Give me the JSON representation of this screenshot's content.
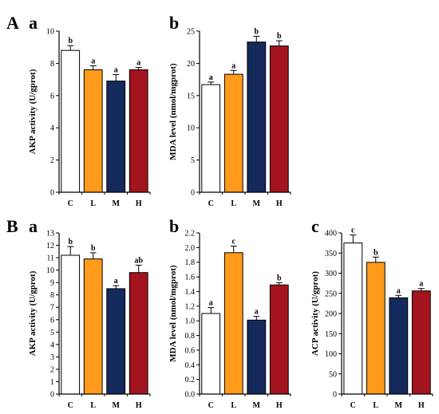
{
  "figure": {
    "group_labels": [
      "A",
      "B"
    ]
  },
  "chart_data": [
    {
      "type": "bar",
      "group": "A",
      "panel": "a",
      "ylabel": "AKP activity (U/gprot)",
      "categories": [
        "C",
        "L",
        "M",
        "H"
      ],
      "values": [
        8.8,
        7.6,
        6.9,
        7.6
      ],
      "errors": [
        0.3,
        0.25,
        0.4,
        0.15
      ],
      "sig": [
        "b",
        "a",
        "a",
        "a"
      ],
      "colors": [
        "#ffffff",
        "#ff9a1a",
        "#14295c",
        "#a3141e"
      ],
      "ylim": [
        0,
        10
      ],
      "yticks": [
        0,
        2,
        4,
        6,
        8,
        10
      ]
    },
    {
      "type": "bar",
      "group": "A",
      "panel": "b",
      "ylabel": "MDA level (nmol/mgprot)",
      "categories": [
        "C",
        "L",
        "M",
        "H"
      ],
      "values": [
        16.7,
        18.3,
        23.3,
        22.7
      ],
      "errors": [
        0.4,
        0.6,
        0.9,
        0.8
      ],
      "sig": [
        "a",
        "a",
        "b",
        "b"
      ],
      "colors": [
        "#ffffff",
        "#ff9a1a",
        "#14295c",
        "#a3141e"
      ],
      "ylim": [
        0,
        25
      ],
      "yticks": [
        0,
        5,
        10,
        15,
        20,
        25
      ]
    },
    {
      "type": "bar",
      "group": "B",
      "panel": "a",
      "ylabel": "AKP activity (U/gprot)",
      "categories": [
        "C",
        "L",
        "M",
        "H"
      ],
      "values": [
        11.2,
        10.9,
        8.5,
        9.8
      ],
      "errors": [
        0.7,
        0.5,
        0.25,
        0.6
      ],
      "sig": [
        "b",
        "b",
        "a",
        "ab"
      ],
      "colors": [
        "#ffffff",
        "#ff9a1a",
        "#14295c",
        "#a3141e"
      ],
      "ylim": [
        0,
        13
      ],
      "yticks": [
        0,
        1,
        2,
        3,
        4,
        5,
        6,
        7,
        8,
        9,
        10,
        11,
        12,
        13
      ]
    },
    {
      "type": "bar",
      "group": "B",
      "panel": "b",
      "ylabel": "MDA level (nmol/mgprot)",
      "categories": [
        "C",
        "L",
        "M",
        "H"
      ],
      "values": [
        1.1,
        1.93,
        1.01,
        1.49
      ],
      "errors": [
        0.08,
        0.09,
        0.05,
        0.03
      ],
      "sig": [
        "a",
        "c",
        "a",
        "b"
      ],
      "colors": [
        "#ffffff",
        "#ff9a1a",
        "#14295c",
        "#a3141e"
      ],
      "ylim": [
        0,
        2.2
      ],
      "yticks": [
        0.0,
        0.2,
        0.4,
        0.6,
        0.8,
        1.0,
        1.2,
        1.4,
        1.6,
        1.8,
        2.0,
        2.2
      ]
    },
    {
      "type": "bar",
      "group": "B",
      "panel": "c",
      "ylabel": "ACP activity (U/gprot)",
      "categories": [
        "C",
        "L",
        "M",
        "H"
      ],
      "values": [
        375,
        327,
        239,
        256
      ],
      "errors": [
        20,
        13,
        6,
        6
      ],
      "sig": [
        "c",
        "b",
        "a",
        "a"
      ],
      "colors": [
        "#ffffff",
        "#ff9a1a",
        "#14295c",
        "#a3141e"
      ],
      "ylim": [
        0,
        400
      ],
      "yticks": [
        0,
        50,
        100,
        150,
        200,
        250,
        300,
        350,
        400
      ]
    }
  ]
}
